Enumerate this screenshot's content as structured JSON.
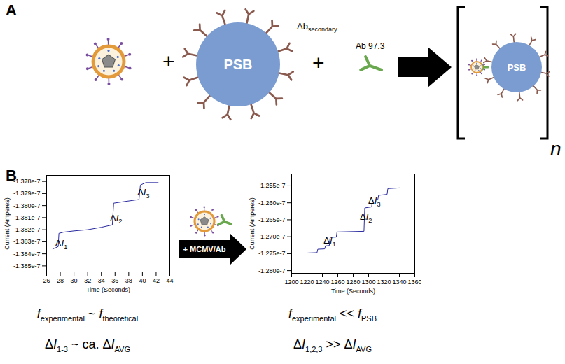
{
  "panel_a": {
    "label": "A",
    "operator": "+",
    "bead_label": "PSB",
    "secondary_antibody": {
      "t": "Ab",
      "sub": "secondary"
    },
    "antibody_label": "Ab 97.3",
    "complex_count": "n"
  },
  "panel_b": {
    "label": "B",
    "arrow_label": "+ MCMV/Ab"
  },
  "chart_data": [
    {
      "type": "line",
      "x_label": "Time (Seconds)",
      "y_label": "Current (Amperes)",
      "xlim": [
        26,
        44
      ],
      "xticks": [
        26,
        28,
        30,
        32,
        34,
        36,
        38,
        40,
        42,
        44
      ],
      "ylim": [
        -1.3855e-07,
        -1.3775e-07
      ],
      "yticks": [
        {
          "value": -1.385e-07,
          "label": "-1.385e-7"
        },
        {
          "value": -1.384e-07,
          "label": "-1.384e-7"
        },
        {
          "value": -1.383e-07,
          "label": "-1.383e-7"
        },
        {
          "value": -1.382e-07,
          "label": "-1.382e-7"
        },
        {
          "value": -1.381e-07,
          "label": "-1.381e-7"
        },
        {
          "value": -1.38e-07,
          "label": "-1.380e-7"
        },
        {
          "value": -1.379e-07,
          "label": "-1.379e-7"
        },
        {
          "value": -1.378e-07,
          "label": "-1.378e-7"
        }
      ],
      "grid": false,
      "color": "#2a2aa0",
      "x": [
        26.9,
        27.3,
        27.7,
        27.8,
        28.5,
        30,
        32,
        34,
        35.6,
        35.8,
        37,
        39.5,
        39.7,
        40.5,
        42.3
      ],
      "values": [
        -1.3836e-07,
        -1.3835e-07,
        -1.3834e-07,
        -1.3823e-07,
        -1.3822e-07,
        -1.3821e-07,
        -1.382e-07,
        -1.3818e-07,
        -1.3816e-07,
        -1.3798e-07,
        -1.3797e-07,
        -1.3795e-07,
        -1.3783e-07,
        -1.3781e-07,
        -1.3781e-07
      ],
      "annotations": [
        {
          "t": "ΔI",
          "sub": "1",
          "x": 28.2,
          "y": -1.3834e-07
        },
        {
          "t": "ΔI",
          "sub": "2",
          "x": 36.2,
          "y": -1.3813e-07
        },
        {
          "t": "ΔI",
          "sub": "3",
          "x": 40.2,
          "y": -1.3792e-07
        }
      ],
      "caption": [
        [
          {
            "t": "f",
            "sub": "experimental"
          },
          {
            "t": "~"
          },
          {
            "t": "f",
            "sub": "theoretical"
          }
        ],
        [
          {
            "t": "ΔI",
            "sub": "1-3"
          },
          {
            "t": "~ ca."
          },
          {
            "t": "ΔI",
            "sub": "AVG"
          }
        ]
      ]
    },
    {
      "type": "line",
      "x_label": "Time (Seconds)",
      "y_label": "Current (Amperes)",
      "xlim": [
        1200,
        1360
      ],
      "xticks": [
        1200,
        1220,
        1240,
        1260,
        1280,
        1300,
        1320,
        1340,
        1360
      ],
      "ylim": [
        -1.2808e-07,
        -1.2515e-07
      ],
      "yticks": [
        {
          "value": -1.28e-07,
          "label": "-1.280e-7"
        },
        {
          "value": -1.275e-07,
          "label": "-1.275e-7"
        },
        {
          "value": -1.27e-07,
          "label": "-1.270e-7"
        },
        {
          "value": -1.265e-07,
          "label": "-1.265e-7"
        },
        {
          "value": -1.26e-07,
          "label": "-1.260e-7"
        },
        {
          "value": -1.255e-07,
          "label": "-1.255e-7"
        }
      ],
      "grid": false,
      "color": "#2a2aa0",
      "x": [
        1221,
        1233,
        1234,
        1243,
        1244,
        1249,
        1250,
        1258,
        1259,
        1294,
        1295,
        1304,
        1305,
        1312,
        1313,
        1324,
        1325,
        1340
      ],
      "values": [
        -1.2748e-07,
        -1.2747e-07,
        -1.2737e-07,
        -1.2736e-07,
        -1.2727e-07,
        -1.2726e-07,
        -1.2702e-07,
        -1.2701e-07,
        -1.2686e-07,
        -1.2684e-07,
        -1.2615e-07,
        -1.2612e-07,
        -1.2592e-07,
        -1.259e-07,
        -1.2578e-07,
        -1.2575e-07,
        -1.2558e-07,
        -1.2556e-07
      ],
      "annotations": [
        {
          "t": "ΔI",
          "sub": "1",
          "x": 1250,
          "y": -1.2722e-07
        },
        {
          "t": "ΔI",
          "sub": "2",
          "x": 1297,
          "y": -1.2652e-07
        },
        {
          "t": "ΔI",
          "sub": "3",
          "x": 1308,
          "y": -1.2603e-07
        }
      ],
      "caption": [
        [
          {
            "t": "f",
            "sub": "experimental"
          },
          {
            "t": "<<"
          },
          {
            "t": "f",
            "sub": "PSB"
          }
        ],
        [
          {
            "t": "ΔI",
            "sub": "1,2,3"
          },
          {
            "t": ">>"
          },
          {
            "t": "ΔI",
            "sub": "AVG"
          }
        ]
      ]
    }
  ]
}
